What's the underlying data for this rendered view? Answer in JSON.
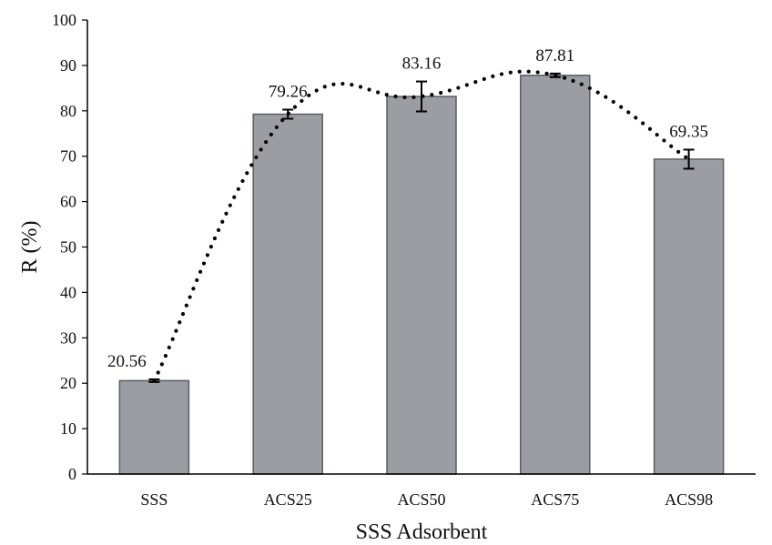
{
  "chart_data": {
    "type": "bar",
    "xlabel": "SSS Adsorbent",
    "ylabel": "R (%)",
    "ylim": [
      0,
      100
    ],
    "yticks": [
      0,
      10,
      20,
      30,
      40,
      50,
      60,
      70,
      80,
      90,
      100
    ],
    "grid": false,
    "categories": [
      "SSS",
      "ACS25",
      "ACS50",
      "ACS75",
      "ACS98"
    ],
    "values": [
      20.56,
      79.26,
      83.16,
      87.81,
      69.35
    ],
    "data_labels": [
      "20.56",
      "79.26",
      "83.16",
      "87.81",
      "69.35"
    ],
    "errors": [
      0.3,
      1.0,
      3.3,
      0.4,
      2.1
    ],
    "trendline": "dotted smooth curve through bar tops",
    "colors": {
      "bar_fill": "#9a9da2",
      "bar_stroke": "#5a5d61",
      "trend": "#000000",
      "axis": "#000000"
    }
  }
}
